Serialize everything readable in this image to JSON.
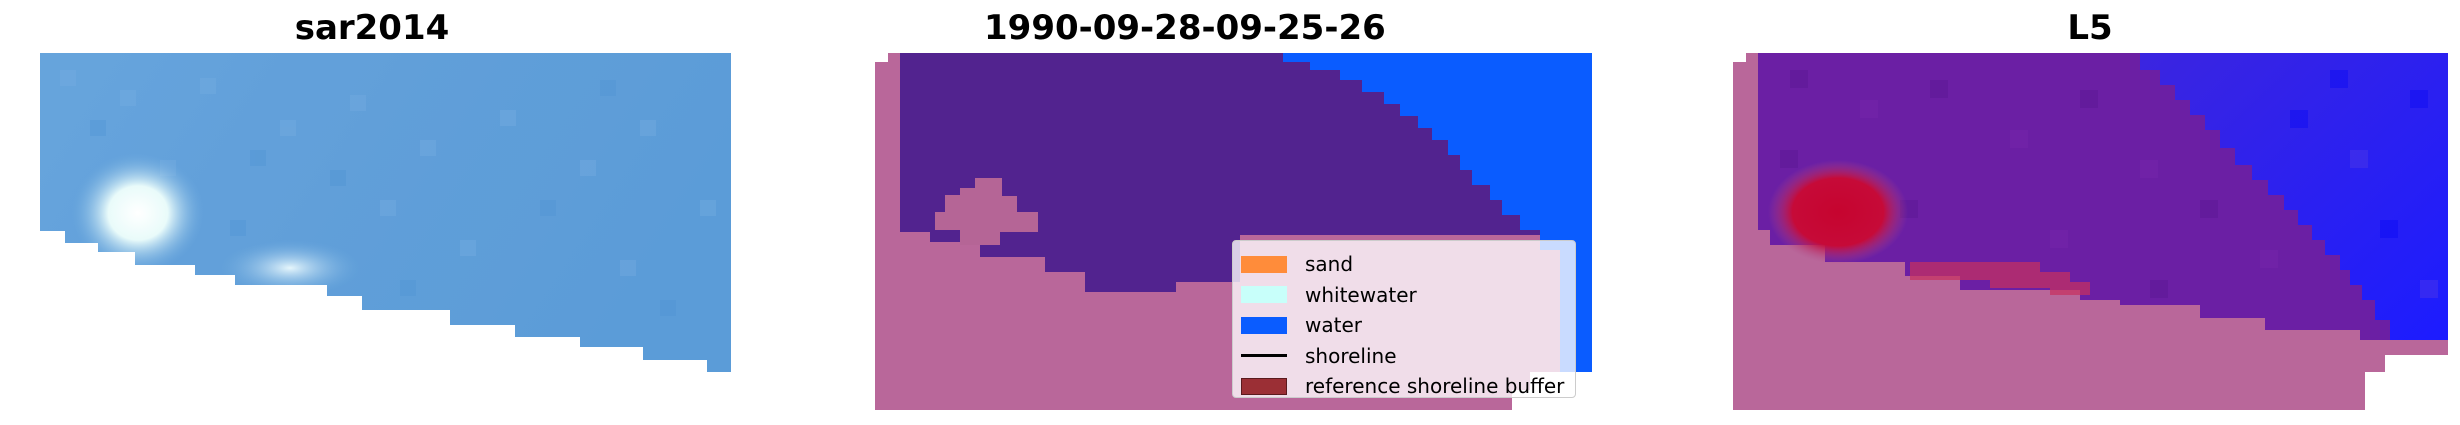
{
  "panels": [
    {
      "title": "sar2014"
    },
    {
      "title": "1990-09-28-09-25-26"
    },
    {
      "title": "L5"
    }
  ],
  "legend": {
    "items": [
      {
        "label": "sand",
        "color": "#ff8c3a",
        "kind": "patch"
      },
      {
        "label": "whitewater",
        "color": "#c8fffa",
        "kind": "patch"
      },
      {
        "label": "water",
        "color": "#0a5cff",
        "kind": "patch"
      },
      {
        "label": "shoreline",
        "color": "#000000",
        "kind": "line"
      },
      {
        "label": "reference shoreline buffer",
        "color": "#9b2f35",
        "kind": "patch"
      }
    ]
  },
  "colors": {
    "sar_blue": "#5b9fdc",
    "sar_white": "#eafcfb",
    "class_water_overlay": "#0a5cff",
    "class_land_overlay": "#b9679a",
    "class_purple": "#52238f",
    "l5_purple": "#6b1fa4",
    "l5_blue": "#2323f0",
    "l5_red": "#c6042f"
  }
}
